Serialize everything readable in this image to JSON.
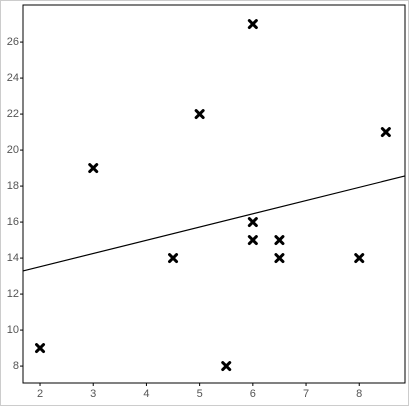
{
  "chart_data": {
    "type": "scatter",
    "x": [
      2,
      3,
      4.5,
      5,
      5.5,
      6,
      6,
      6,
      6.5,
      6.5,
      8,
      8.5
    ],
    "values": [
      9,
      19,
      14,
      22,
      8,
      27,
      16,
      15,
      15,
      14,
      14,
      21
    ],
    "color": "#000000",
    "xlim": [
      1.68,
      8.86
    ],
    "ylim": [
      7.06,
      28.06
    ],
    "xticks": [
      2,
      3,
      4,
      5,
      6,
      7,
      8
    ],
    "yticks": [
      8,
      10,
      12,
      14,
      16,
      18,
      20,
      22,
      24,
      26
    ],
    "trendline": {
      "slope": 0.735,
      "intercept": 12.05
    }
  }
}
